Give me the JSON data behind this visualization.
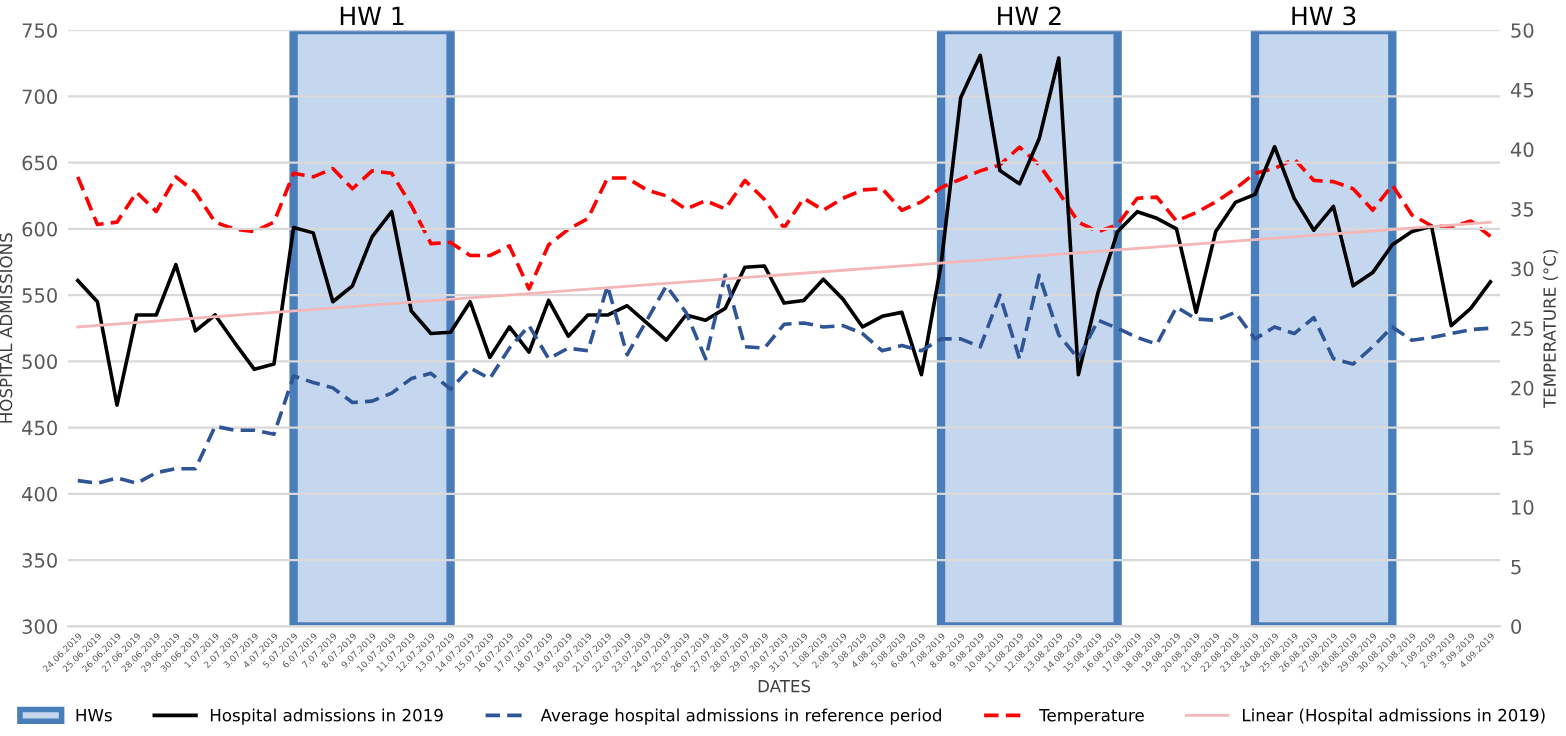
{
  "chart_data": {
    "type": "line",
    "xlabel": "DATES",
    "ylabel": "HOSPITAL ADMISSIONS",
    "y2label": "TEMPERATURE (°C)",
    "categories": [
      "24.06.2019",
      "25.06.2019",
      "26.06.2019",
      "27.06.2019",
      "28.06.2019",
      "29.06.2019",
      "30.06.2019",
      "1.07.2019",
      "2.07.2019",
      "3.07.2019",
      "4.07.2019",
      "5.07.2019",
      "6.07.2019",
      "7.07.2019",
      "8.07.2019",
      "9.07.2019",
      "10.07.2019",
      "11.07.2019",
      "12.07.2019",
      "13.07.2019",
      "14.07.2019",
      "15.07.2019",
      "16.07.2019",
      "17.07.2019",
      "18.07.2019",
      "19.07.2019",
      "20.07.2019",
      "21.07.2019",
      "22.07.2019",
      "23.07.2019",
      "24.07.2019",
      "25.07.2019",
      "26.07.2019",
      "27.07.2019",
      "28.07.2019",
      "29.07.2019",
      "30.07.2019",
      "31.07.2019",
      "1.08.2019",
      "2.08.2019",
      "3.08.2019",
      "4.08.2019",
      "5.08.2019",
      "6.08.2019",
      "7.08.2019",
      "8.08.2019",
      "9.08.2019",
      "10.08.2019",
      "11.08.2019",
      "12.08.2019",
      "13.08.2019",
      "14.08.2019",
      "15.08.2019",
      "16.08.2019",
      "17.08.2019",
      "18.08.2019",
      "19.08.2019",
      "20.08.2019",
      "21.08.2019",
      "22.08.2019",
      "23.08.2019",
      "24.08.2019",
      "25.08.2019",
      "26.08.2019",
      "27.08.2019",
      "28.08.2019",
      "29.08.2019",
      "30.08.2019",
      "31.08.2019",
      "1.09.2019",
      "2.09.2019",
      "3.09.2019",
      "4.09.2019"
    ],
    "series": [
      {
        "name": "Hospital admissions in 2019",
        "color": "#000000",
        "line_style": "solid",
        "values": [
          561,
          545,
          467,
          535,
          535,
          573,
          523,
          535,
          514,
          494,
          498,
          601,
          597,
          545,
          557,
          594,
          613,
          538,
          521,
          522,
          545,
          503,
          526,
          507,
          546,
          519,
          535,
          535,
          542,
          529,
          516,
          535,
          531,
          540,
          571,
          572,
          544,
          546,
          562,
          547,
          526,
          534,
          537,
          490,
          573,
          699,
          731,
          644,
          634,
          668,
          729,
          490,
          552,
          598,
          613,
          608,
          600,
          537,
          598,
          620,
          626,
          662,
          623,
          599,
          617,
          557,
          567,
          588,
          598,
          602,
          527,
          540,
          560
        ]
      },
      {
        "name": "Average hospital admissions in reference period",
        "color": "#2f5597",
        "line_style": "dashed",
        "values": [
          410,
          408,
          412,
          408,
          416,
          419,
          419,
          451,
          448,
          448,
          445,
          489,
          484,
          480,
          469,
          470,
          476,
          487,
          491,
          479,
          495,
          487,
          510,
          527,
          502,
          510,
          508,
          557,
          505,
          531,
          557,
          537,
          502,
          565,
          511,
          510,
          528,
          529,
          526,
          527,
          521,
          508,
          512,
          508,
          517,
          517,
          511,
          550,
          502,
          565,
          520,
          502,
          531,
          525,
          518,
          513,
          541,
          532,
          531,
          537,
          517,
          526,
          521,
          533,
          502,
          498,
          511,
          526,
          516,
          518,
          521,
          524,
          525
        ]
      },
      {
        "name": "Temperature",
        "axis": "y2",
        "color": "#ff0000",
        "line_style": "dashed",
        "values": [
          37.7,
          33.7,
          33.9,
          36.4,
          34.8,
          37.7,
          36.4,
          33.9,
          33.3,
          33.1,
          33.9,
          38.0,
          37.7,
          38.4,
          36.7,
          38.2,
          38.0,
          35.3,
          32.1,
          32.2,
          31.1,
          31.1,
          31.9,
          28.3,
          32.0,
          33.3,
          34.2,
          37.6,
          37.6,
          36.6,
          36.1,
          35.0,
          35.7,
          35.0,
          37.4,
          35.8,
          33.4,
          35.9,
          34.9,
          35.9,
          36.6,
          36.7,
          34.9,
          35.6,
          36.8,
          37.5,
          38.2,
          38.7,
          40.2,
          38.7,
          36.4,
          33.9,
          33.1,
          33.7,
          35.9,
          36.0,
          34.0,
          34.7,
          35.6,
          36.7,
          38.0,
          38.4,
          39.2,
          37.4,
          37.3,
          36.7,
          34.9,
          37.0,
          34.5,
          33.6,
          33.5,
          34.0,
          32.7
        ]
      },
      {
        "name": "Linear (Hospital admissions in 2019)",
        "color": "#f4b6b6",
        "line_style": "solid",
        "x": [
          "24.06.2019",
          "4.09.2019"
        ],
        "values": [
          526,
          605
        ]
      }
    ],
    "bands": [
      {
        "axis": "x",
        "from": "5.07.2019",
        "to": "13.07.2019",
        "label": "HW 1",
        "color": "#c5d7ee"
      },
      {
        "axis": "x",
        "from": "7.08.2019",
        "to": "16.08.2019",
        "label": "HW 2",
        "color": "#c5d7ee"
      },
      {
        "axis": "x",
        "from": "23.08.2019",
        "to": "30.08.2019",
        "label": "HW 3",
        "color": "#c5d7ee"
      }
    ],
    "annotations": [
      "HWs"
    ],
    "ylim": [
      300,
      750
    ],
    "yticks": [
      300,
      350,
      400,
      450,
      500,
      550,
      600,
      650,
      700,
      750
    ],
    "y2lim": [
      0,
      50
    ],
    "y2ticks": [
      0,
      5,
      10,
      15,
      20,
      25,
      30,
      35,
      40,
      45,
      50
    ],
    "grid": "y",
    "legend": "bottom"
  }
}
